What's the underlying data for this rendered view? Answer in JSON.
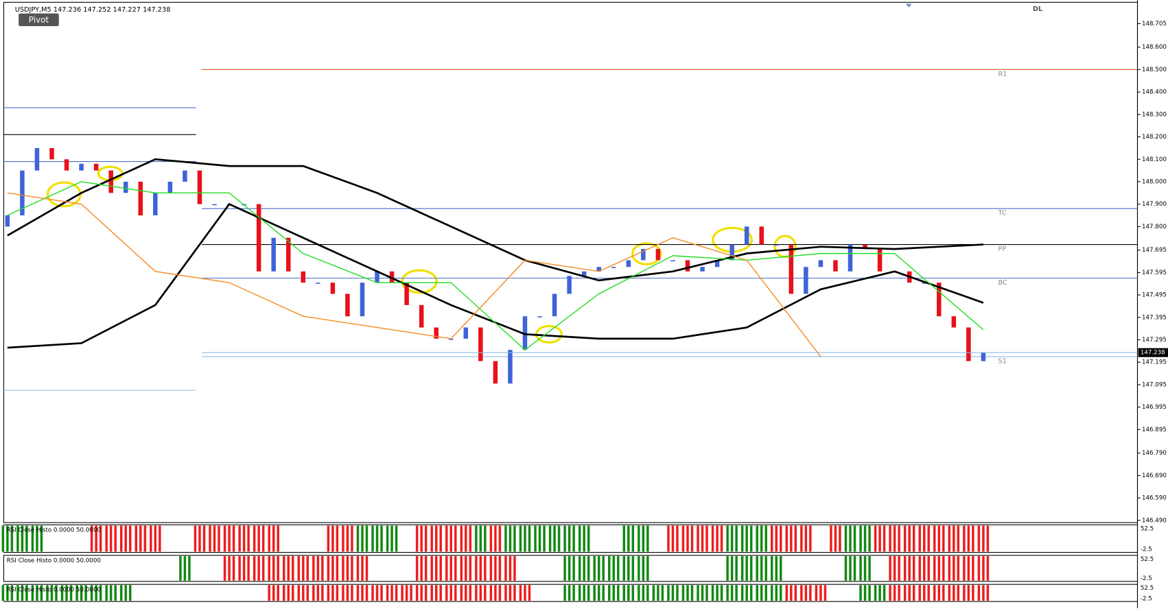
{
  "chart_data": {
    "type": "candlestick",
    "title": "USDJPY,M5  147.236 147.252 147.227 147.238",
    "button": "Pivot",
    "corner_label": "DL",
    "ylim": [
      146.48,
      148.8
    ],
    "yticks": [
      {
        "value": 148.705,
        "label": "148.705"
      },
      {
        "value": 148.6,
        "label": "148.600"
      },
      {
        "value": 148.5,
        "label": "148.500"
      },
      {
        "value": 148.4,
        "label": "148.400"
      },
      {
        "value": 148.3,
        "label": "148.300"
      },
      {
        "value": 148.2,
        "label": "148.200"
      },
      {
        "value": 148.1,
        "label": "148.100"
      },
      {
        "value": 148.0,
        "label": "148.000"
      },
      {
        "value": 147.9,
        "label": "147.900"
      },
      {
        "value": 147.8,
        "label": "147.800"
      },
      {
        "value": 147.695,
        "label": "147.695"
      },
      {
        "value": 147.595,
        "label": "147.595"
      },
      {
        "value": 147.495,
        "label": "147.495"
      },
      {
        "value": 147.395,
        "label": "147.395"
      },
      {
        "value": 147.295,
        "label": "147.295"
      },
      {
        "value": 147.195,
        "label": "147.195"
      },
      {
        "value": 147.095,
        "label": "147.095"
      },
      {
        "value": 146.995,
        "label": "146.995"
      },
      {
        "value": 146.895,
        "label": "146.895"
      },
      {
        "value": 146.79,
        "label": "146.790"
      },
      {
        "value": 146.69,
        "label": "146.690"
      },
      {
        "value": 146.59,
        "label": "146.590"
      },
      {
        "value": 146.49,
        "label": "146.490"
      }
    ],
    "current_price": {
      "value": 147.238,
      "label": "147.238"
    },
    "up_color": "#3f63d8",
    "down_color": "#e8101a",
    "candles": {
      "open": [
        147.8,
        147.85,
        148.05,
        148.15,
        148.1,
        148.05,
        148.08,
        148.05,
        147.95,
        148.0,
        147.85,
        147.95,
        148.0,
        148.05,
        147.9,
        147.9,
        147.9,
        147.9,
        147.6,
        147.75,
        147.6,
        147.55,
        147.55,
        147.5,
        147.4,
        147.55,
        147.6,
        147.55,
        147.45,
        147.35,
        147.3,
        147.3,
        147.35,
        147.2,
        147.1,
        147.25,
        147.4,
        147.4,
        147.5,
        147.58,
        147.6,
        147.62,
        147.62,
        147.65,
        147.7,
        147.65,
        147.65,
        147.6,
        147.62,
        147.65,
        147.72,
        147.8,
        147.72,
        147.72,
        147.5,
        147.62,
        147.65,
        147.6,
        147.72,
        147.7,
        147.6,
        147.6,
        147.55,
        147.55,
        147.4,
        147.35,
        147.2
      ],
      "close": [
        147.85,
        148.05,
        148.15,
        148.1,
        148.05,
        148.08,
        148.05,
        147.95,
        148.0,
        147.85,
        147.95,
        148.0,
        148.05,
        147.9,
        147.9,
        147.9,
        147.9,
        147.6,
        147.75,
        147.6,
        147.55,
        147.55,
        147.5,
        147.4,
        147.55,
        147.6,
        147.55,
        147.45,
        147.35,
        147.3,
        147.3,
        147.35,
        147.2,
        147.1,
        147.25,
        147.4,
        147.4,
        147.5,
        147.58,
        147.6,
        147.62,
        147.62,
        147.65,
        147.7,
        147.65,
        147.65,
        147.6,
        147.62,
        147.65,
        147.72,
        147.8,
        147.72,
        147.72,
        147.5,
        147.62,
        147.65,
        147.6,
        147.72,
        147.7,
        147.6,
        147.6,
        147.55,
        147.55,
        147.4,
        147.35,
        147.2,
        147.24
      ]
    },
    "line_x": [
      0,
      5,
      10,
      15,
      20,
      25,
      30,
      35,
      40,
      45,
      50,
      55,
      60,
      66
    ],
    "series": [
      {
        "color": "#000000",
        "values": [
          147.76,
          147.95,
          148.1,
          148.07,
          148.07,
          147.95,
          147.8,
          147.65,
          147.56,
          147.6,
          147.68,
          147.71,
          147.7,
          147.72
        ]
      },
      {
        "color": "#000000",
        "values": [
          147.26,
          147.28,
          147.45,
          147.9,
          147.75,
          147.6,
          147.45,
          147.32,
          147.3,
          147.3,
          147.35,
          147.52,
          147.6,
          147.46
        ]
      },
      {
        "color": "#22dd22",
        "values": [
          147.85,
          148.0,
          147.95,
          147.95,
          147.68,
          147.55,
          147.55,
          147.25,
          147.5,
          147.67,
          147.65,
          147.68,
          147.68,
          147.34
        ]
      },
      {
        "color": "#f58a1f",
        "values": [
          147.95,
          147.9,
          147.6,
          147.55,
          147.4,
          147.35,
          147.3,
          147.65,
          147.6,
          147.75,
          147.65,
          147.22,
          null,
          null
        ]
      }
    ],
    "pivots": [
      {
        "name": "R1",
        "value": 148.5,
        "color": "#f05a28"
      },
      {
        "name": "TC",
        "value": 147.88,
        "color": "#4a6cc8"
      },
      {
        "name": "PP",
        "value": 147.72,
        "color": "#000000"
      },
      {
        "name": "BC",
        "value": 147.57,
        "color": "#4a6cc8"
      },
      {
        "name": "S1",
        "value": 147.22,
        "color": "#8fb8e8"
      }
    ],
    "prev_levels": [
      {
        "value": 148.33,
        "color": "#4a6cc8"
      },
      {
        "value": 148.21,
        "color": "#000000"
      },
      {
        "value": 148.09,
        "color": "#4a6cc8"
      },
      {
        "value": 147.07,
        "color": "#8fb8e8"
      }
    ],
    "panels": [
      {
        "label": "RSI Close Histo 0.0000 50.0000",
        "levels": [
          52.5,
          -2.5
        ],
        "runs": [
          [
            0,
            2,
            1
          ],
          [
            6,
            10,
            -1
          ],
          [
            13,
            15,
            -1
          ],
          [
            16,
            18,
            -1
          ],
          [
            22,
            23,
            -1
          ],
          [
            24,
            26,
            1
          ],
          [
            28,
            30,
            -1
          ],
          [
            31,
            31,
            -1
          ],
          [
            32,
            32,
            1
          ],
          [
            33,
            33,
            -1
          ],
          [
            34,
            39,
            1
          ],
          [
            42,
            43,
            1
          ],
          [
            45,
            48,
            -1
          ],
          [
            49,
            51,
            1
          ],
          [
            52,
            54,
            -1
          ],
          [
            56,
            56,
            -1
          ],
          [
            57,
            58,
            1
          ],
          [
            59,
            60,
            -1
          ],
          [
            61,
            66,
            -1
          ]
        ]
      },
      {
        "label": "RSI Close Histo 0.0000 50.0000",
        "levels": [
          52.5,
          -2.5
        ],
        "runs": [
          [
            12,
            12,
            1
          ],
          [
            15,
            24,
            -1
          ],
          [
            28,
            34,
            -1
          ],
          [
            38,
            43,
            1
          ],
          [
            49,
            52,
            1
          ],
          [
            57,
            58,
            1
          ],
          [
            60,
            66,
            -1
          ]
        ]
      },
      {
        "label": "RSI Close Histo 0.0000 50.0000",
        "levels": [
          52.5,
          -2.5
        ],
        "runs": [
          [
            0,
            8,
            1
          ],
          [
            18,
            35,
            -1
          ],
          [
            38,
            52,
            1
          ],
          [
            53,
            55,
            -1
          ],
          [
            58,
            59,
            1
          ],
          [
            60,
            66,
            -1
          ]
        ]
      }
    ],
    "up_bar_color": "#118811",
    "down_bar_color": "#ee1c1c"
  }
}
